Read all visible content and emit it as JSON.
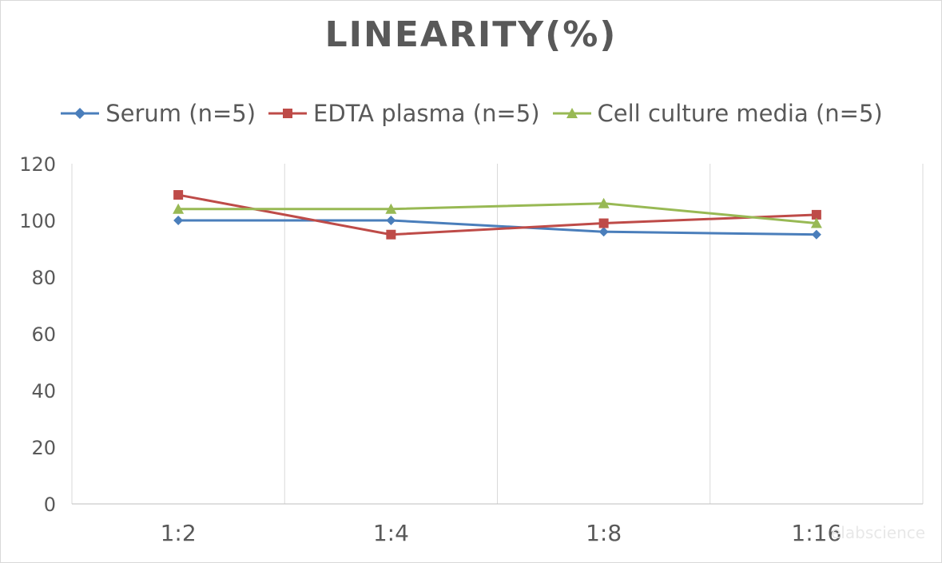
{
  "chart_data": {
    "type": "line",
    "title": "LINEARITY(%)",
    "categories": [
      "1:2",
      "1:4",
      "1:8",
      "1:16"
    ],
    "ylim": [
      0,
      120
    ],
    "yticks": [
      0,
      20,
      40,
      60,
      80,
      100,
      120
    ],
    "grid": "vertical",
    "legend_position": "top",
    "series": [
      {
        "name": "Serum (n=5)",
        "values": [
          100,
          100,
          96,
          95
        ],
        "color": "#4a7ebb",
        "marker": "diamond"
      },
      {
        "name": "EDTA plasma (n=5)",
        "values": [
          109,
          95,
          99,
          102
        ],
        "color": "#be4b48",
        "marker": "square"
      },
      {
        "name": "Cell culture media (n=5)",
        "values": [
          104,
          104,
          106,
          99
        ],
        "color": "#98b954",
        "marker": "triangle"
      }
    ]
  },
  "watermark": "elabscience"
}
